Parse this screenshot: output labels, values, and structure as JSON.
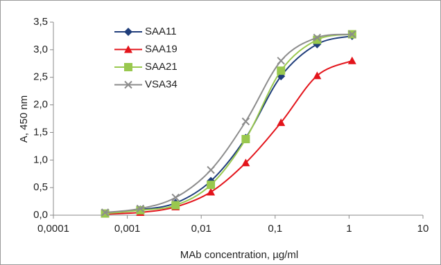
{
  "chart_data": {
    "type": "line",
    "x_label": "MAb concentration, µg/ml",
    "y_label": "A, 450 nm",
    "x_scale": "log",
    "x": [
      0.0005,
      0.0015,
      0.0045,
      0.0135,
      0.04,
      0.12,
      0.37,
      1.1
    ],
    "xlim": [
      0.0001,
      10
    ],
    "xticks": [
      {
        "value": 0.0001,
        "label": "0,0001"
      },
      {
        "value": 0.001,
        "label": "0,001"
      },
      {
        "value": 0.01,
        "label": "0,01"
      },
      {
        "value": 0.1,
        "label": "0,1"
      },
      1,
      10
    ],
    "ylim": [
      0,
      3.5
    ],
    "yticks": [
      {
        "value": 0,
        "label": "0,0"
      },
      {
        "value": 0.5,
        "label": "0,5"
      },
      {
        "value": 1,
        "label": "1,0"
      },
      {
        "value": 1.5,
        "label": "1,5"
      },
      {
        "value": 2,
        "label": "2,0"
      },
      {
        "value": 2.5,
        "label": "2,5"
      },
      {
        "value": 3,
        "label": "3,0"
      },
      {
        "value": 3.5,
        "label": "3,5"
      }
    ],
    "legend": "top-left",
    "series": [
      {
        "name": "SAA11",
        "color": "#1f3d7a",
        "marker": "diamond",
        "values": [
          0.03,
          0.1,
          0.22,
          0.62,
          1.4,
          2.52,
          3.1,
          3.25
        ]
      },
      {
        "name": "SAA19",
        "color": "#e3141b",
        "marker": "triangle",
        "values": [
          0.02,
          0.05,
          0.15,
          0.42,
          0.95,
          1.68,
          2.53,
          2.8
        ]
      },
      {
        "name": "SAA21",
        "color": "#99c84e",
        "marker": "square",
        "values": [
          0.03,
          0.09,
          0.18,
          0.55,
          1.38,
          2.62,
          3.18,
          3.28
        ]
      },
      {
        "name": "VSA34",
        "color": "#8c8c8c",
        "marker": "x",
        "values": [
          0.05,
          0.12,
          0.32,
          0.82,
          1.7,
          2.8,
          3.22,
          3.28
        ]
      }
    ]
  }
}
